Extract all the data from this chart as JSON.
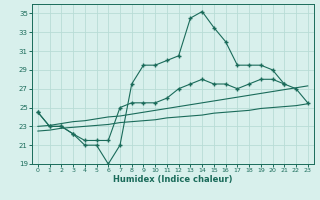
{
  "xlabel": "Humidex (Indice chaleur)",
  "x_values": [
    0,
    1,
    2,
    3,
    4,
    5,
    6,
    7,
    8,
    9,
    10,
    11,
    12,
    13,
    14,
    15,
    16,
    17,
    18,
    19,
    20,
    21,
    22,
    23
  ],
  "line1_y": [
    24.5,
    23.0,
    23.0,
    22.2,
    21.0,
    21.0,
    19.0,
    21.0,
    27.5,
    29.5,
    29.5,
    30.0,
    30.5,
    34.5,
    35.2,
    33.5,
    32.0,
    29.5,
    29.5,
    29.5,
    29.0,
    27.5,
    null,
    null
  ],
  "line2_y": [
    24.5,
    23.0,
    23.0,
    22.2,
    21.5,
    21.5,
    21.5,
    25.0,
    25.5,
    25.5,
    25.5,
    26.0,
    27.0,
    27.5,
    28.0,
    27.5,
    27.5,
    27.0,
    27.5,
    28.0,
    28.0,
    27.5,
    27.0,
    25.5
  ],
  "line3_y": [
    23.0,
    23.1,
    23.3,
    23.5,
    23.6,
    23.8,
    24.0,
    24.1,
    24.3,
    24.5,
    24.7,
    24.9,
    25.1,
    25.3,
    25.5,
    25.7,
    25.9,
    26.1,
    26.3,
    26.5,
    26.7,
    26.9,
    27.1,
    27.3
  ],
  "line4_y": [
    22.5,
    22.6,
    22.8,
    22.9,
    23.0,
    23.1,
    23.2,
    23.4,
    23.5,
    23.6,
    23.7,
    23.9,
    24.0,
    24.1,
    24.2,
    24.4,
    24.5,
    24.6,
    24.7,
    24.9,
    25.0,
    25.1,
    25.2,
    25.4
  ],
  "color": "#1a6b5a",
  "bg_color": "#d8f0ec",
  "grid_color": "#b8dcd6",
  "ylim": [
    19,
    36
  ],
  "yticks": [
    19,
    21,
    23,
    25,
    27,
    29,
    31,
    33,
    35
  ],
  "xticks": [
    0,
    1,
    2,
    3,
    4,
    5,
    6,
    7,
    8,
    9,
    10,
    11,
    12,
    13,
    14,
    15,
    16,
    17,
    18,
    19,
    20,
    21,
    22,
    23
  ],
  "marker": "+",
  "markersize": 3.5,
  "linewidth": 0.8
}
